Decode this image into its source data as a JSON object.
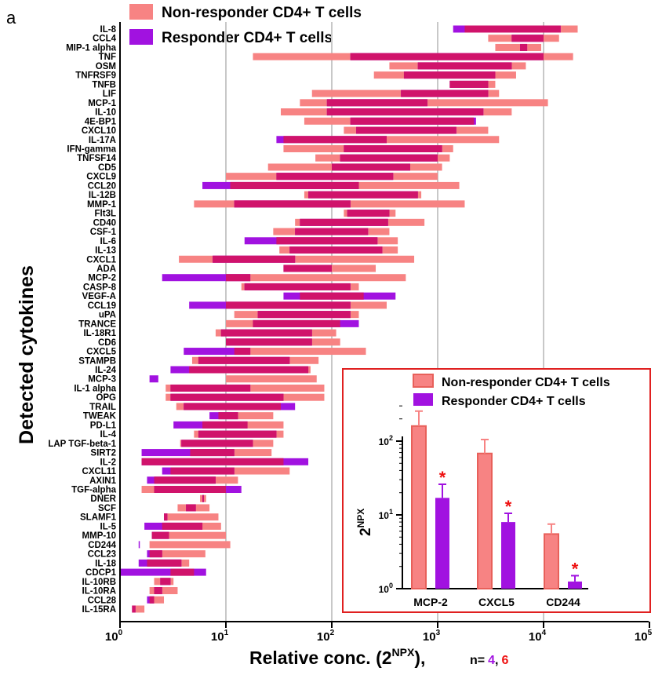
{
  "panel_label": "a",
  "colors": {
    "non_responder": "#f78383",
    "responder": "#a112e0",
    "overlap": "#d0136b",
    "star": "#ee1111",
    "grid": "#c8c8c8",
    "inset_border": "#e02020"
  },
  "chart_data": [
    {
      "type": "bar",
      "orientation": "horizontal",
      "subtype": "floating-range",
      "title": "",
      "xlabel": "Relative conc. (2",
      "xlabel_sup": "NPX",
      "xlabel_suffix": "),",
      "n_prefix": "n=",
      "n_responder": "4",
      "n_separator": ",",
      "n_non_responder": "6",
      "ylabel": "Detected cytokines",
      "x_scale": "log",
      "xlim": [
        1,
        100000
      ],
      "x_ticks": [
        {
          "value": 1,
          "base": "10",
          "exp": "0"
        },
        {
          "value": 10,
          "base": "10",
          "exp": "1"
        },
        {
          "value": 100,
          "base": "10",
          "exp": "2"
        },
        {
          "value": 1000,
          "base": "10",
          "exp": "3"
        },
        {
          "value": 10000,
          "base": "10",
          "exp": "4"
        },
        {
          "value": 100000,
          "base": "10",
          "exp": "5"
        }
      ],
      "vertical_grid_at": [
        10,
        100,
        1000,
        10000
      ],
      "legend": {
        "position": "top",
        "entries": [
          "Non-responder CD4+ T cells",
          "Responder CD4+ T cells"
        ]
      },
      "categories": [
        "IL-8",
        "CCL4",
        "MIP-1 alpha",
        "TNF",
        "OSM",
        "TNFRSF9",
        "TNFB",
        "LIF",
        "MCP-1",
        "IL-10",
        "4E-BP1",
        "CXCL10",
        "IL-17A",
        "IFN-gamma",
        "TNFSF14",
        "CD5",
        "CXCL9",
        "CCL20",
        "IL-12B",
        "MMP-1",
        "Flt3L",
        "CD40",
        "CSF-1",
        "IL-6",
        "IL-13",
        "CXCL1",
        "ADA",
        "MCP-2",
        "CASP-8",
        "VEGF-A",
        "CCL19",
        "uPA",
        "TRANCE",
        "IL-18R1",
        "CD6",
        "CXCL5",
        "STAMPB",
        "IL-24",
        "MCP-3",
        "IL-1 alpha",
        "OPG",
        "TRAIL",
        "TWEAK",
        "PD-L1",
        "IL-4",
        "LAP TGF-beta-1",
        "SIRT2",
        "IL-2",
        "CXCL11",
        "AXIN1",
        "TGF-alpha",
        "DNER",
        "SCF",
        "SLAMF1",
        "IL-5",
        "MMP-10",
        "CD244",
        "CCL23",
        "IL-18",
        "CDCP1",
        "IL-10RB",
        "IL-10RA",
        "CCL28",
        "IL-15RA"
      ],
      "series": [
        {
          "name": "Non-responder CD4+ T cells",
          "ranges": [
            [
              1800,
              21000
            ],
            [
              3000,
              14000
            ],
            [
              3500,
              9500
            ],
            [
              18,
              19000
            ],
            [
              350,
              6800
            ],
            [
              250,
              5500
            ],
            [
              1300,
              3500
            ],
            [
              65,
              3800
            ],
            [
              50,
              11000
            ],
            [
              33,
              5000
            ],
            [
              55,
              2200
            ],
            [
              130,
              3000
            ],
            [
              35,
              3800
            ],
            [
              35,
              1400
            ],
            [
              70,
              1300
            ],
            [
              25,
              1100
            ],
            [
              10,
              1000
            ],
            [
              11,
              1600
            ],
            [
              55,
              700
            ],
            [
              5,
              1800
            ],
            [
              130,
              400
            ],
            [
              45,
              750
            ],
            [
              28,
              350
            ],
            [
              30,
              420
            ],
            [
              32,
              420
            ],
            [
              3.6,
              600
            ],
            [
              35,
              260
            ],
            [
              10,
              500
            ],
            [
              14,
              180
            ],
            [
              50,
              200
            ],
            [
              10,
              330
            ],
            [
              12,
              180
            ],
            [
              10,
              120
            ],
            [
              8,
              110
            ],
            [
              10,
              120
            ],
            [
              12,
              210
            ],
            [
              4.8,
              75
            ],
            [
              4.5,
              63
            ],
            [
              10,
              72
            ],
            [
              2.7,
              85
            ],
            [
              2.7,
              85
            ],
            [
              3.4,
              33
            ],
            [
              8.5,
              28
            ],
            [
              6,
              35
            ],
            [
              5,
              35
            ],
            [
              3.7,
              28
            ],
            [
              4.6,
              27
            ],
            [
              1.6,
              35
            ],
            [
              3,
              40
            ],
            [
              2.1,
              13
            ],
            [
              1.6,
              10
            ],
            [
              5.7,
              6.5
            ],
            [
              3.5,
              7
            ],
            [
              2.6,
              8.5
            ],
            [
              2.5,
              9
            ],
            [
              2,
              10
            ],
            [
              1.9,
              11
            ],
            [
              1.9,
              6.4
            ],
            [
              1.8,
              4.5
            ],
            [
              3,
              5
            ],
            [
              2.1,
              3.2
            ],
            [
              1.9,
              3.5
            ],
            [
              1.9,
              2.6
            ],
            [
              1.3,
              1.7
            ]
          ]
        },
        {
          "name": "Responder CD4+ T cells",
          "ranges": [
            [
              1400,
              14500
            ],
            [
              5000,
              10000
            ],
            [
              6000,
              7000
            ],
            [
              150,
              10000
            ],
            [
              650,
              5000
            ],
            [
              480,
              3500
            ],
            [
              1300,
              3000
            ],
            [
              450,
              3000
            ],
            [
              90,
              800
            ],
            [
              90,
              2700
            ],
            [
              150,
              2300
            ],
            [
              170,
              1500
            ],
            [
              30,
              330
            ],
            [
              130,
              1100
            ],
            [
              120,
              1000
            ],
            [
              100,
              550
            ],
            [
              30,
              380
            ],
            [
              6,
              180
            ],
            [
              60,
              650
            ],
            [
              12,
              150
            ],
            [
              140,
              350
            ],
            [
              50,
              340
            ],
            [
              45,
              220
            ],
            [
              15,
              270
            ],
            [
              40,
              300
            ],
            [
              7.5,
              45
            ],
            [
              35,
              100
            ],
            [
              2.5,
              17
            ],
            [
              15,
              150
            ],
            [
              35,
              400
            ],
            [
              4.5,
              150
            ],
            [
              20,
              150
            ],
            [
              18,
              180
            ],
            [
              9,
              65
            ],
            [
              10,
              65
            ],
            [
              4,
              17
            ],
            [
              5.5,
              40
            ],
            [
              3,
              60
            ],
            [
              1.9,
              2.3
            ],
            [
              3,
              17
            ],
            [
              3,
              35
            ],
            [
              4,
              45
            ],
            [
              7,
              13
            ],
            [
              3.2,
              16
            ],
            [
              5.5,
              30
            ],
            [
              3.8,
              18
            ],
            [
              1.6,
              12
            ],
            [
              1.6,
              60
            ],
            [
              2.5,
              12
            ],
            [
              1.8,
              8
            ],
            [
              2.1,
              14
            ],
            [
              6,
              6.2
            ],
            [
              4.2,
              5.2
            ],
            [
              2.6,
              2.8
            ],
            [
              1.7,
              6
            ],
            [
              2,
              2.9
            ],
            [
              1.5,
              1.53
            ],
            [
              1.8,
              2.5
            ],
            [
              1.5,
              3.8
            ],
            [
              1,
              6.5
            ],
            [
              2.4,
              3
            ],
            [
              2.1,
              2.5
            ],
            [
              1.8,
              2.1
            ],
            [
              1.3,
              1.4
            ]
          ]
        }
      ]
    },
    {
      "type": "bar",
      "title": "",
      "ylabel": "2",
      "ylabel_sup": "NPX",
      "xlabel": "",
      "y_scale": "log",
      "ylim": [
        1,
        300
      ],
      "y_ticks": [
        {
          "value": 1,
          "base": "10",
          "exp": "0"
        },
        {
          "value": 10,
          "base": "10",
          "exp": "1"
        },
        {
          "value": 100,
          "base": "10",
          "exp": "2"
        }
      ],
      "categories": [
        "MCP-2",
        "CXCL5",
        "CD244"
      ],
      "legend": {
        "position": "top",
        "entries": [
          "Non-responder CD4+ T cells",
          "Responder CD4+ T cells"
        ]
      },
      "series": [
        {
          "name": "Non-responder CD4+ T cells",
          "values": [
            160,
            68,
            5.5
          ],
          "error_upper": [
            255,
            105,
            7.5
          ]
        },
        {
          "name": "Responder CD4+ T cells",
          "values": [
            17,
            8,
            1.25
          ],
          "error_upper": [
            26,
            10.5,
            1.5
          ]
        }
      ],
      "significance_marker": "*",
      "significant_series": "Responder CD4+ T cells"
    }
  ]
}
